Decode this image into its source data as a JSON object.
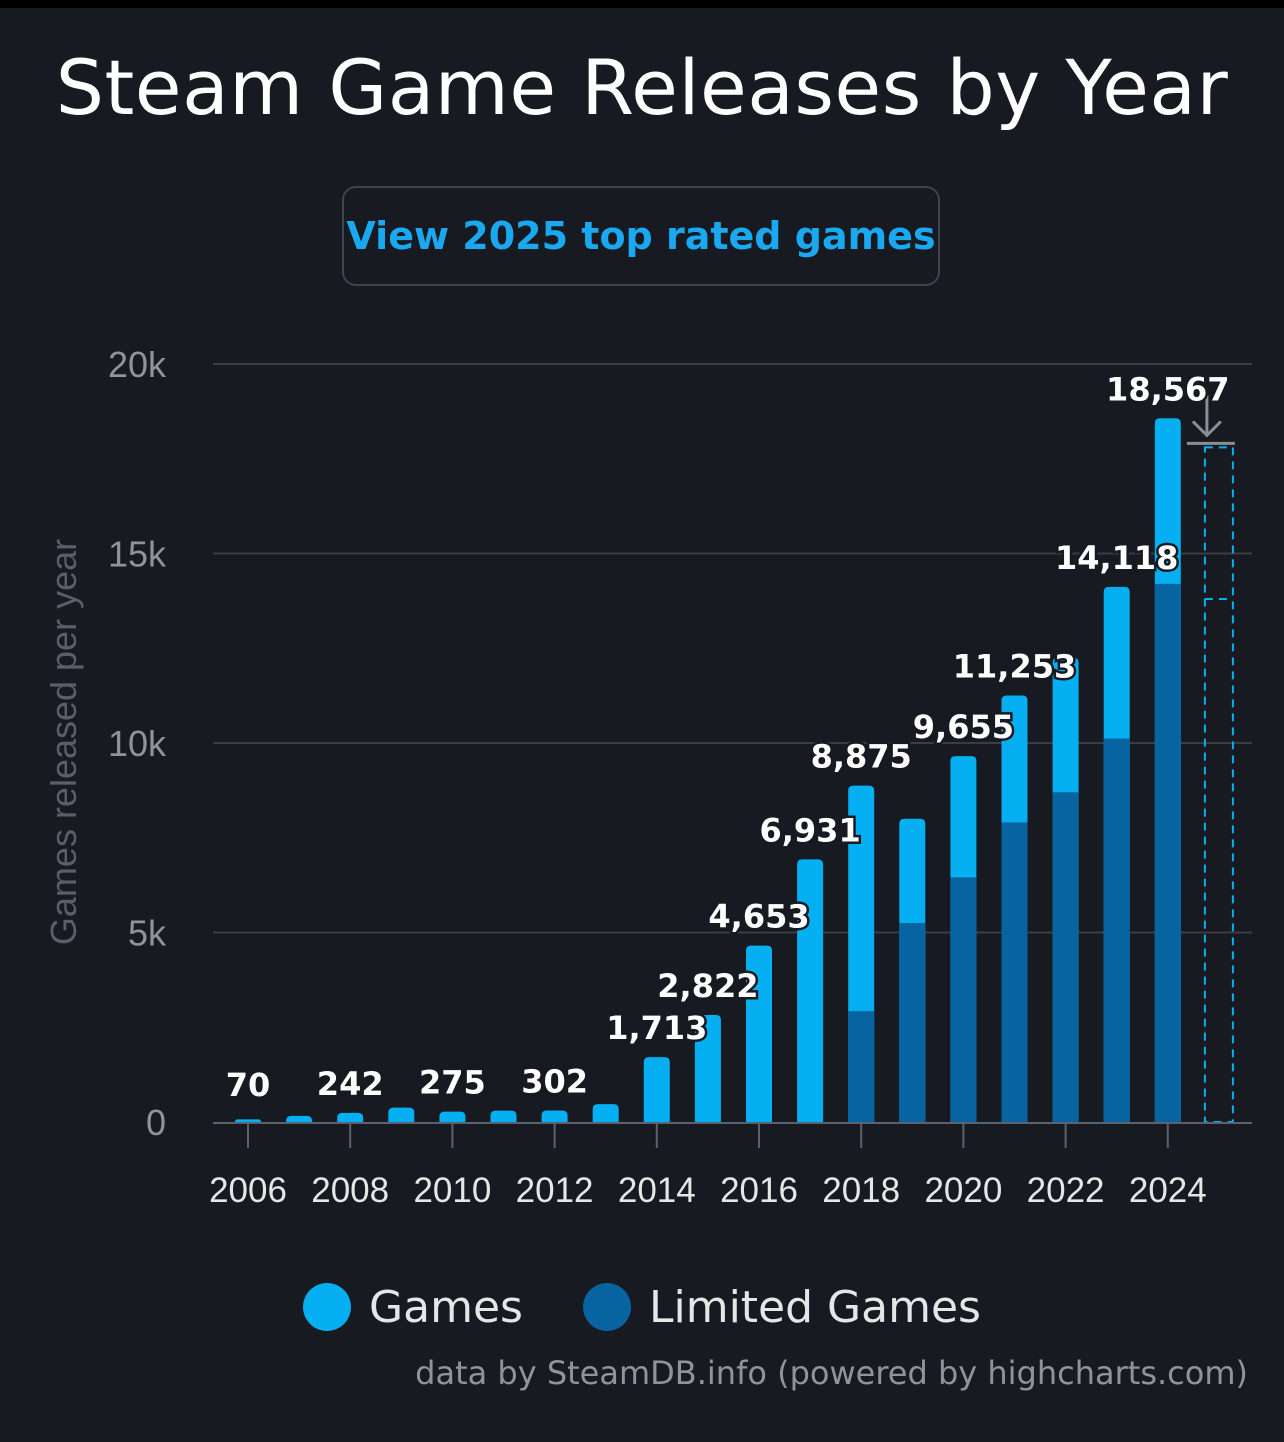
{
  "title": "Steam Game Releases by Year",
  "cta": {
    "label": "View 2025 top rated games"
  },
  "credits": "data by SteamDB.info (powered by highcharts.com)",
  "colors": {
    "games": "#05aff2",
    "limited": "#0764a0",
    "grid": "#3a3d44",
    "axis": "#5a6170",
    "label": "#ffffff",
    "tick": "#e6e6e6",
    "muted": "#8f949b"
  },
  "chart_data": {
    "type": "bar",
    "title": "Steam Game Releases by Year",
    "ylabel": "Games released per year",
    "xlabel": "",
    "ylim": [
      0,
      20000
    ],
    "yticks": [
      0,
      5000,
      10000,
      15000,
      20000
    ],
    "ytick_labels": [
      "0",
      "5k",
      "10k",
      "15k",
      "20k"
    ],
    "xtick_labels": [
      "2006",
      "2008",
      "2010",
      "2012",
      "2014",
      "2016",
      "2018",
      "2020",
      "2022",
      "2024"
    ],
    "stacked": true,
    "categories": [
      "2006",
      "2007",
      "2008",
      "2009",
      "2010",
      "2011",
      "2012",
      "2013",
      "2014",
      "2015",
      "2016",
      "2017",
      "2018",
      "2019",
      "2020",
      "2021",
      "2022",
      "2023",
      "2024",
      "2025"
    ],
    "series": [
      {
        "name": "Games",
        "values": [
          70,
          160,
          242,
          380,
          275,
          300,
          302,
          470,
          1713,
          2822,
          4653,
          6931,
          5950,
          2750,
          3200,
          3350,
          3550,
          4000,
          4367,
          0
        ]
      },
      {
        "name": "Limited Games",
        "values": [
          0,
          0,
          0,
          0,
          0,
          0,
          0,
          0,
          0,
          0,
          0,
          0,
          2925,
          5250,
          6455,
          7903,
          8700,
          10118,
          14200,
          0
        ]
      }
    ],
    "data_labels": [
      "70",
      "",
      "242",
      "",
      "275",
      "",
      "302",
      "",
      "1,713",
      "2,822",
      "4,653",
      "6,931",
      "8,875",
      "",
      "9,655",
      "11,253",
      "",
      "14,118",
      "18,567",
      ""
    ],
    "projection": {
      "category": "2025",
      "total": 17800,
      "limited": 13800
    },
    "legend": "bottom-center"
  }
}
